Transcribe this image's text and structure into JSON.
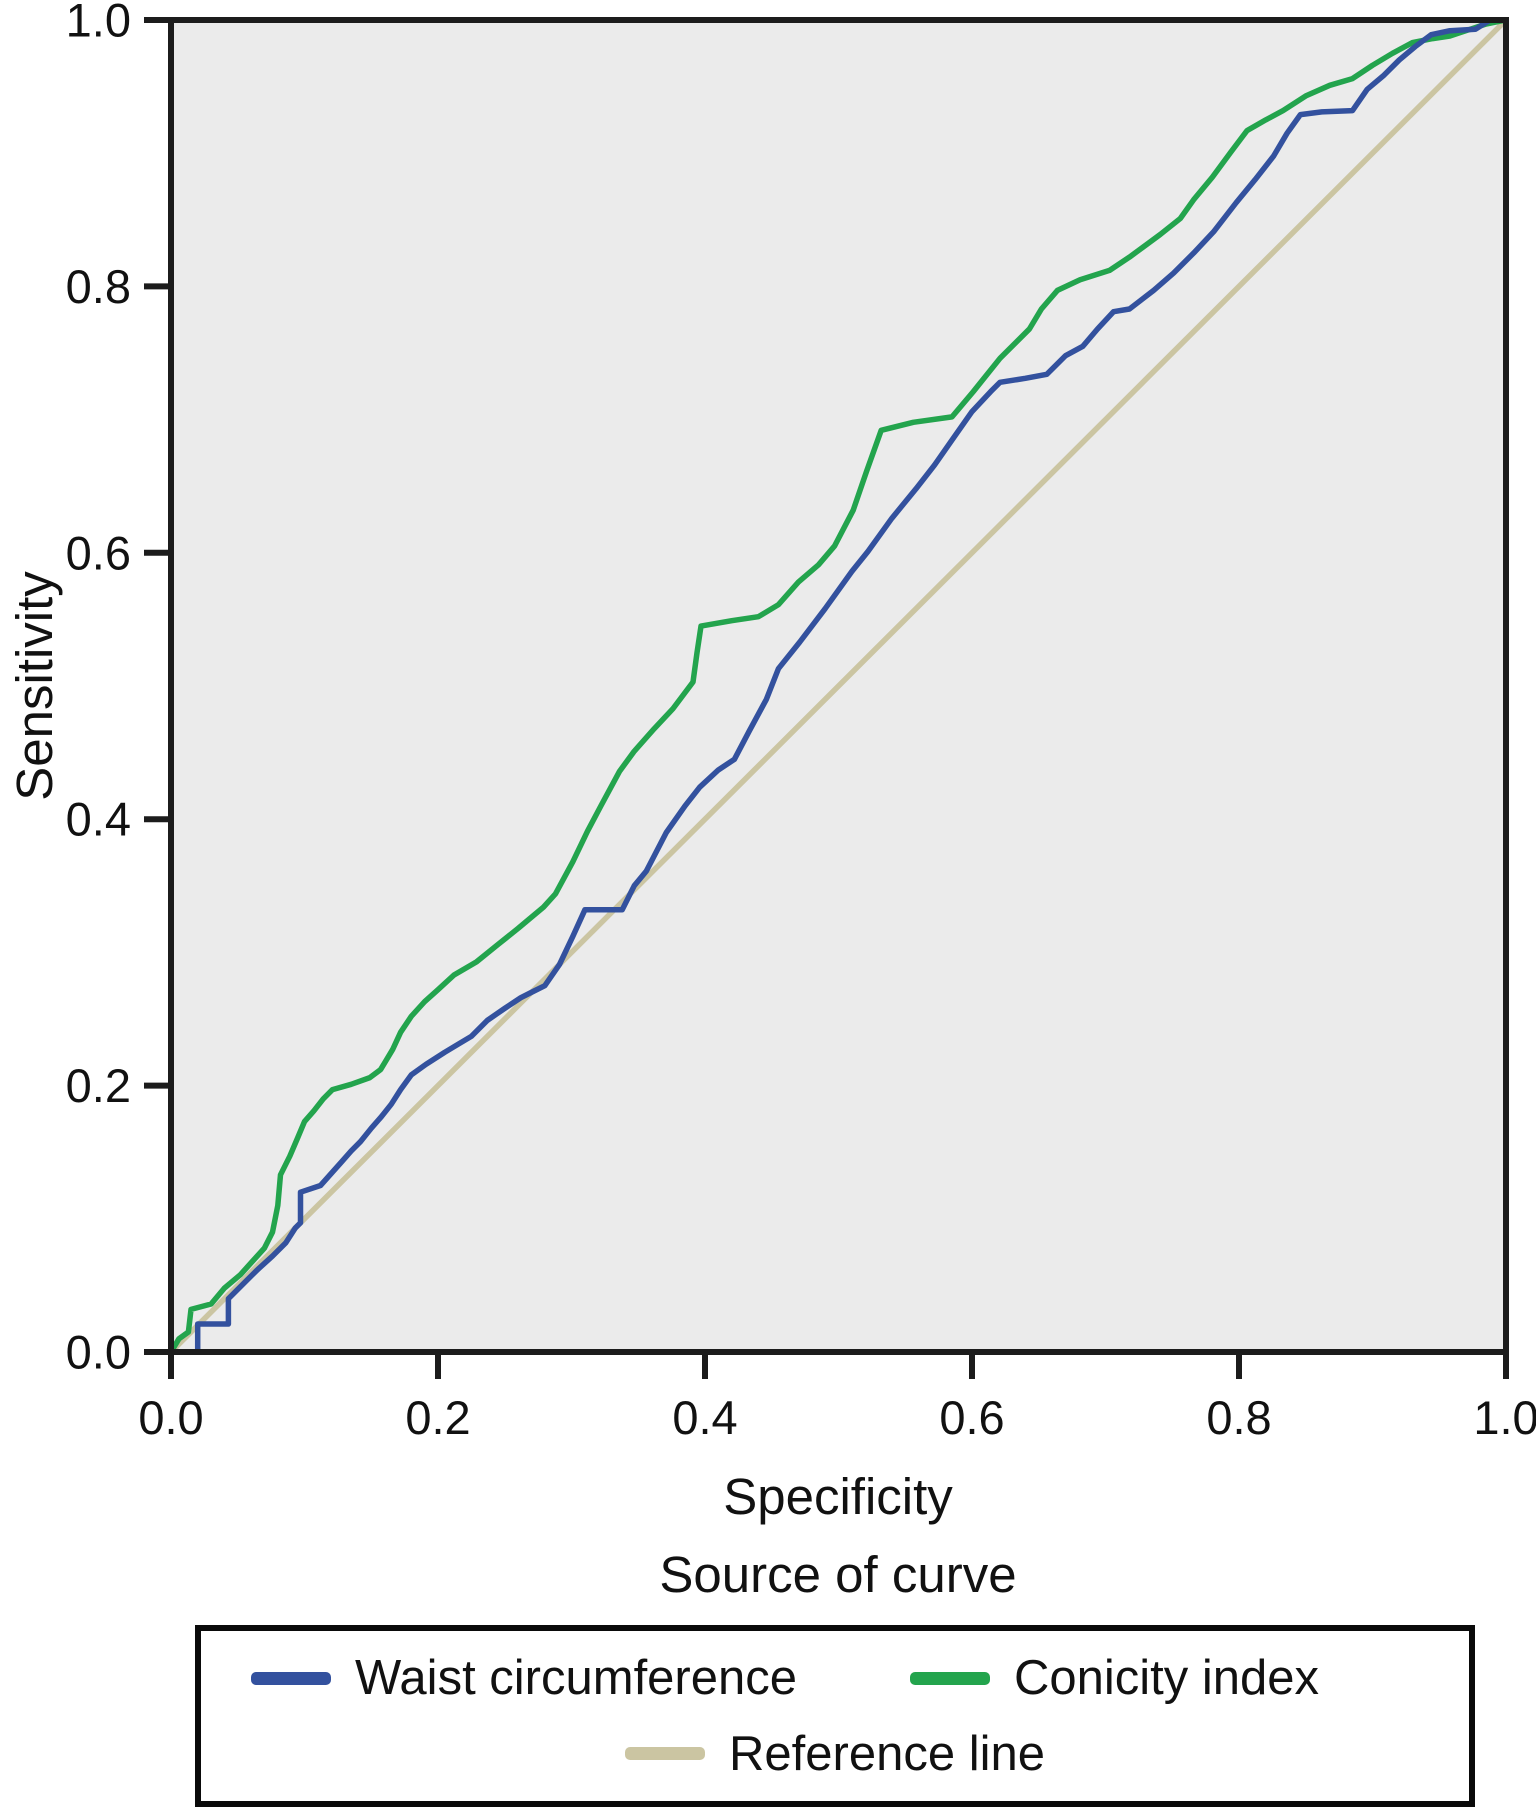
{
  "chart_data": {
    "type": "line",
    "title": "",
    "xlabel": "Specificity",
    "ylabel": "Sensitivity",
    "legend_title": "Source of curve",
    "xlim": [
      0,
      1
    ],
    "ylim": [
      0,
      1
    ],
    "x_ticks": [
      "0.0",
      "0.2",
      "0.4",
      "0.6",
      "0.8",
      "1.0"
    ],
    "y_ticks": [
      "0.0",
      "0.2",
      "0.4",
      "0.6",
      "0.8",
      "1.0"
    ],
    "grid": false,
    "legend_position": "bottom",
    "plot_background": "#ebebeb",
    "axis_color": "#1c1c1c",
    "text_color": "#111111",
    "series": [
      {
        "name": "Waist circumference",
        "color": "#33519e",
        "points": [
          [
            0,
            0
          ],
          [
            0.02,
            0
          ],
          [
            0.02,
            0.021
          ],
          [
            0.043,
            0.021
          ],
          [
            0.043,
            0.04
          ],
          [
            0.055,
            0.052
          ],
          [
            0.065,
            0.062
          ],
          [
            0.076,
            0.072
          ],
          [
            0.086,
            0.082
          ],
          [
            0.093,
            0.093
          ],
          [
            0.097,
            0.097
          ],
          [
            0.097,
            0.12
          ],
          [
            0.112,
            0.125
          ],
          [
            0.12,
            0.134
          ],
          [
            0.128,
            0.143
          ],
          [
            0.135,
            0.151
          ],
          [
            0.142,
            0.158
          ],
          [
            0.15,
            0.168
          ],
          [
            0.157,
            0.176
          ],
          [
            0.165,
            0.186
          ],
          [
            0.172,
            0.197
          ],
          [
            0.18,
            0.208
          ],
          [
            0.191,
            0.216
          ],
          [
            0.205,
            0.225
          ],
          [
            0.215,
            0.231
          ],
          [
            0.225,
            0.237
          ],
          [
            0.237,
            0.249
          ],
          [
            0.25,
            0.258
          ],
          [
            0.262,
            0.266
          ],
          [
            0.272,
            0.271
          ],
          [
            0.28,
            0.275
          ],
          [
            0.291,
            0.291
          ],
          [
            0.301,
            0.312
          ],
          [
            0.31,
            0.332
          ],
          [
            0.338,
            0.332
          ],
          [
            0.347,
            0.35
          ],
          [
            0.356,
            0.361
          ],
          [
            0.371,
            0.39
          ],
          [
            0.385,
            0.41
          ],
          [
            0.396,
            0.424
          ],
          [
            0.41,
            0.437
          ],
          [
            0.422,
            0.445
          ],
          [
            0.433,
            0.466
          ],
          [
            0.446,
            0.49
          ],
          [
            0.455,
            0.513
          ],
          [
            0.471,
            0.533
          ],
          [
            0.49,
            0.558
          ],
          [
            0.51,
            0.586
          ],
          [
            0.522,
            0.601
          ],
          [
            0.54,
            0.626
          ],
          [
            0.558,
            0.648
          ],
          [
            0.572,
            0.666
          ],
          [
            0.586,
            0.686
          ],
          [
            0.6,
            0.706
          ],
          [
            0.614,
            0.721
          ],
          [
            0.621,
            0.728
          ],
          [
            0.64,
            0.731
          ],
          [
            0.656,
            0.734
          ],
          [
            0.67,
            0.748
          ],
          [
            0.683,
            0.755
          ],
          [
            0.694,
            0.768
          ],
          [
            0.706,
            0.781
          ],
          [
            0.718,
            0.783
          ],
          [
            0.736,
            0.797
          ],
          [
            0.751,
            0.81
          ],
          [
            0.766,
            0.825
          ],
          [
            0.781,
            0.841
          ],
          [
            0.798,
            0.863
          ],
          [
            0.812,
            0.88
          ],
          [
            0.826,
            0.898
          ],
          [
            0.836,
            0.915
          ],
          [
            0.846,
            0.929
          ],
          [
            0.862,
            0.931
          ],
          [
            0.885,
            0.932
          ],
          [
            0.896,
            0.948
          ],
          [
            0.908,
            0.958
          ],
          [
            0.92,
            0.97
          ],
          [
            0.932,
            0.98
          ],
          [
            0.944,
            0.989
          ],
          [
            0.958,
            0.992
          ],
          [
            0.977,
            0.993
          ],
          [
            0.988,
            1
          ],
          [
            1,
            1
          ]
        ]
      },
      {
        "name": "Conicity index",
        "color": "#23a44d",
        "points": [
          [
            0,
            0
          ],
          [
            0.006,
            0.01
          ],
          [
            0.013,
            0.015
          ],
          [
            0.015,
            0.032
          ],
          [
            0.03,
            0.036
          ],
          [
            0.04,
            0.048
          ],
          [
            0.052,
            0.058
          ],
          [
            0.061,
            0.068
          ],
          [
            0.07,
            0.078
          ],
          [
            0.076,
            0.09
          ],
          [
            0.08,
            0.11
          ],
          [
            0.082,
            0.133
          ],
          [
            0.089,
            0.147
          ],
          [
            0.095,
            0.161
          ],
          [
            0.1,
            0.173
          ],
          [
            0.107,
            0.181
          ],
          [
            0.114,
            0.19
          ],
          [
            0.121,
            0.197
          ],
          [
            0.135,
            0.201
          ],
          [
            0.149,
            0.206
          ],
          [
            0.157,
            0.212
          ],
          [
            0.166,
            0.227
          ],
          [
            0.172,
            0.24
          ],
          [
            0.18,
            0.252
          ],
          [
            0.19,
            0.263
          ],
          [
            0.2,
            0.272
          ],
          [
            0.212,
            0.283
          ],
          [
            0.229,
            0.293
          ],
          [
            0.245,
            0.306
          ],
          [
            0.26,
            0.318
          ],
          [
            0.279,
            0.334
          ],
          [
            0.288,
            0.344
          ],
          [
            0.301,
            0.368
          ],
          [
            0.312,
            0.391
          ],
          [
            0.322,
            0.41
          ],
          [
            0.336,
            0.436
          ],
          [
            0.347,
            0.451
          ],
          [
            0.362,
            0.468
          ],
          [
            0.376,
            0.483
          ],
          [
            0.391,
            0.503
          ],
          [
            0.394,
            0.525
          ],
          [
            0.397,
            0.545
          ],
          [
            0.42,
            0.549
          ],
          [
            0.44,
            0.552
          ],
          [
            0.455,
            0.561
          ],
          [
            0.47,
            0.578
          ],
          [
            0.485,
            0.591
          ],
          [
            0.497,
            0.605
          ],
          [
            0.511,
            0.632
          ],
          [
            0.521,
            0.661
          ],
          [
            0.532,
            0.692
          ],
          [
            0.556,
            0.698
          ],
          [
            0.585,
            0.702
          ],
          [
            0.601,
            0.721
          ],
          [
            0.621,
            0.746
          ],
          [
            0.643,
            0.768
          ],
          [
            0.652,
            0.783
          ],
          [
            0.664,
            0.797
          ],
          [
            0.681,
            0.805
          ],
          [
            0.703,
            0.812
          ],
          [
            0.718,
            0.822
          ],
          [
            0.741,
            0.839
          ],
          [
            0.756,
            0.851
          ],
          [
            0.766,
            0.865
          ],
          [
            0.78,
            0.882
          ],
          [
            0.794,
            0.901
          ],
          [
            0.806,
            0.917
          ],
          [
            0.82,
            0.925
          ],
          [
            0.833,
            0.932
          ],
          [
            0.85,
            0.943
          ],
          [
            0.868,
            0.951
          ],
          [
            0.885,
            0.956
          ],
          [
            0.9,
            0.966
          ],
          [
            0.915,
            0.975
          ],
          [
            0.93,
            0.983
          ],
          [
            0.945,
            0.986
          ],
          [
            0.958,
            0.988
          ],
          [
            0.97,
            0.992
          ],
          [
            0.985,
            0.997
          ],
          [
            1,
            1
          ]
        ]
      },
      {
        "name": "Reference line",
        "color": "#cbc5a2",
        "points": [
          [
            0,
            0
          ],
          [
            1,
            1
          ]
        ]
      }
    ]
  },
  "legend": {
    "rows": [
      [
        0,
        1
      ],
      [
        2
      ]
    ]
  }
}
